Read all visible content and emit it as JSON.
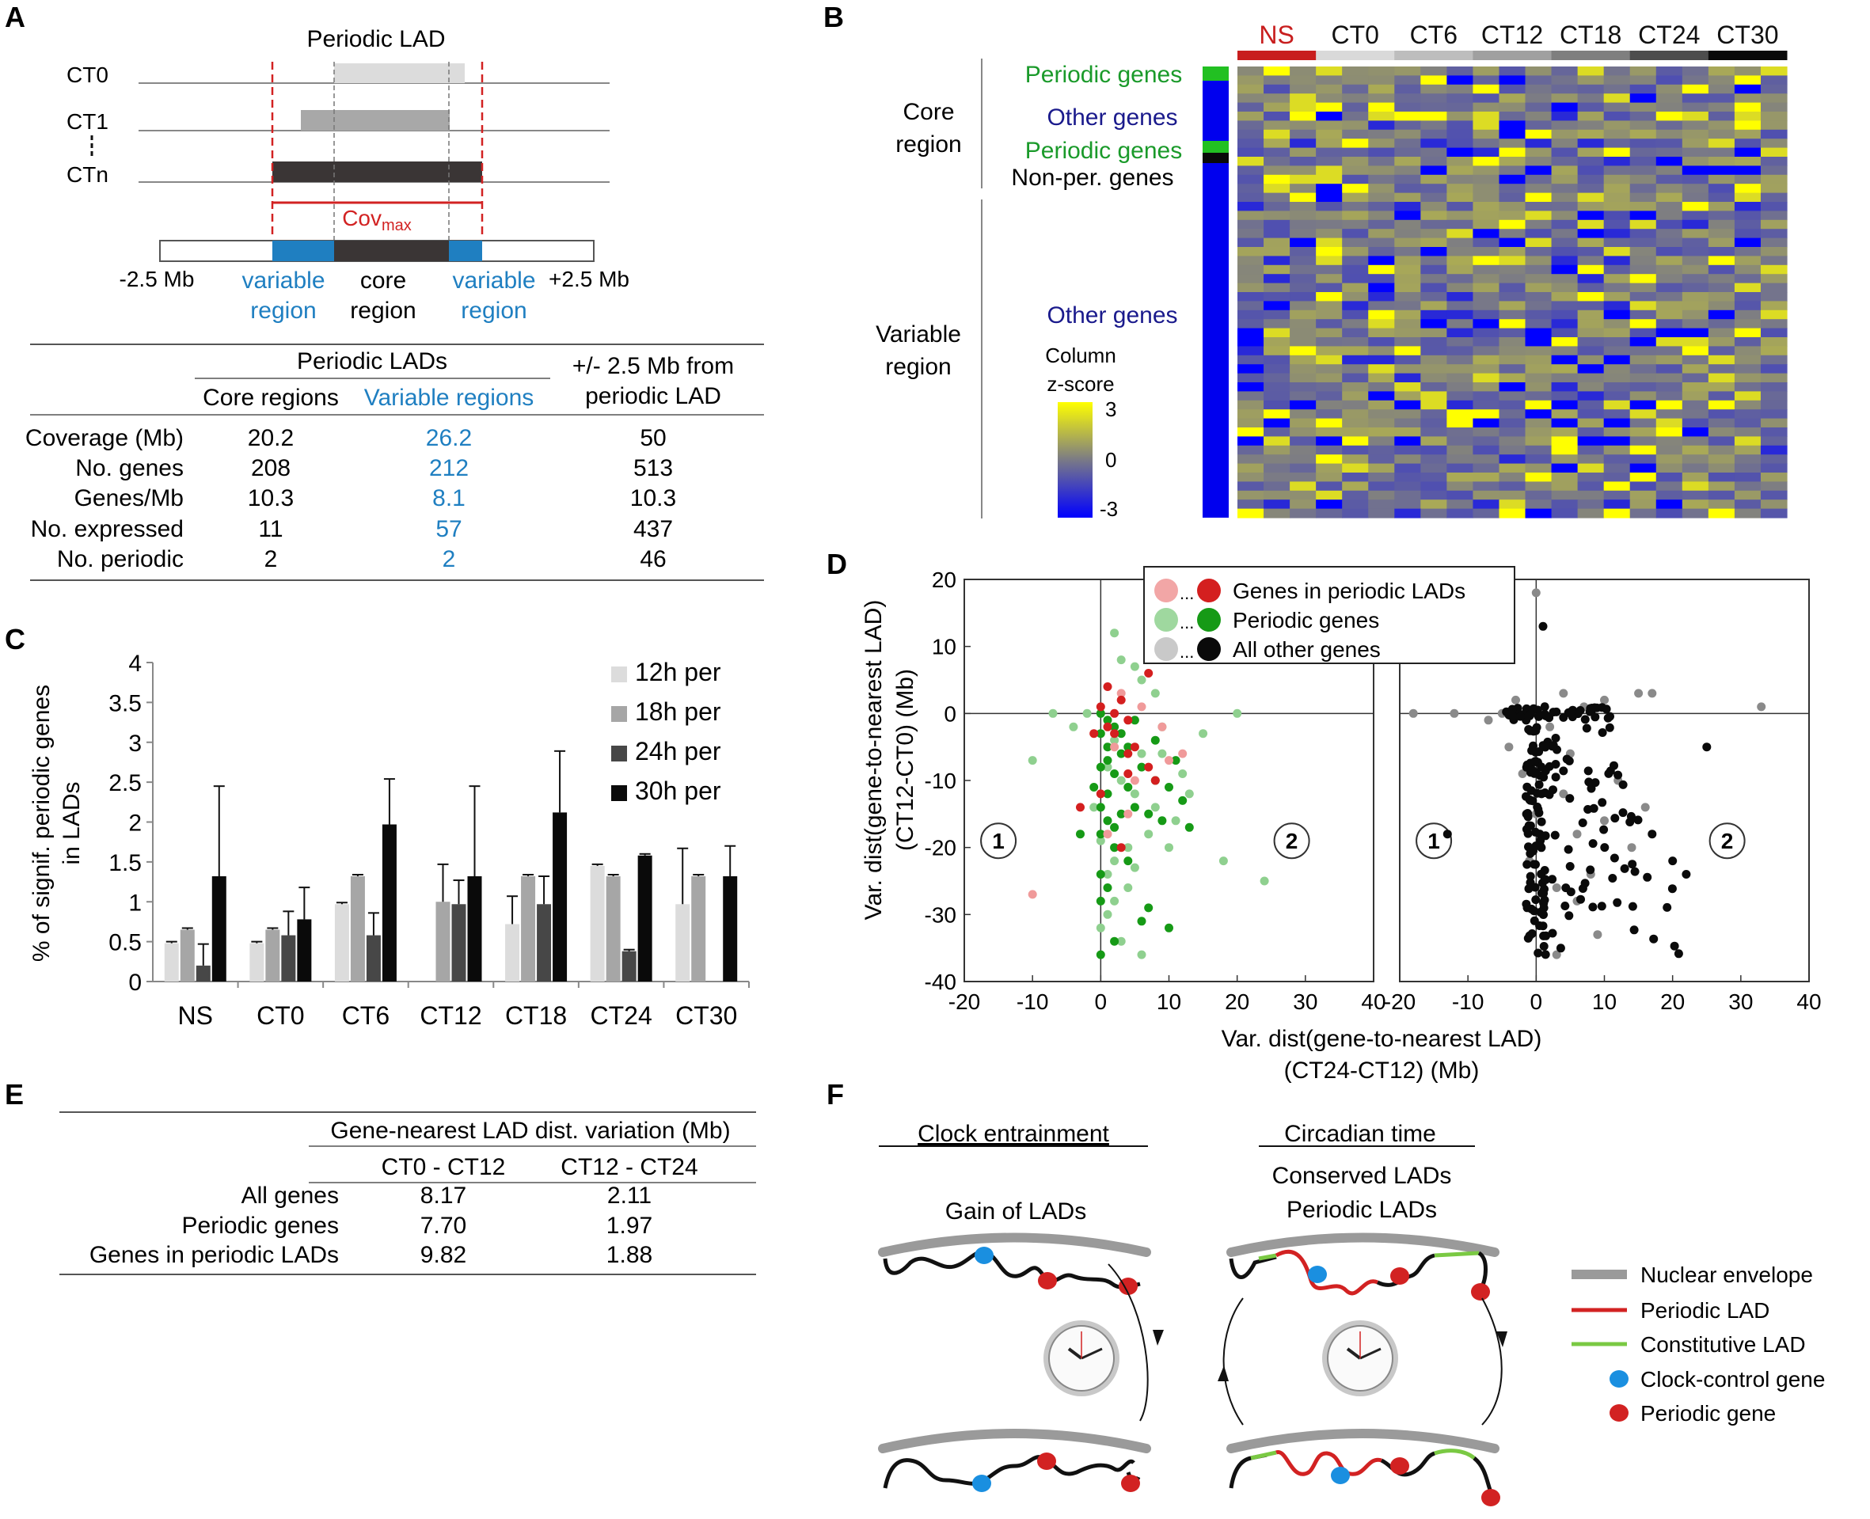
{
  "colors": {
    "blue": "#1f7fc1",
    "green": "#1a9a2a",
    "red": "#d22222",
    "navy": "#1a1a8c",
    "yellow": "#ffff00",
    "heat_blue": "#0000ff",
    "heat_mid": "#7a7a86"
  },
  "panels": {
    "A": "A",
    "B": "B",
    "C": "C",
    "D": "D",
    "E": "E",
    "F": "F"
  },
  "panelA": {
    "title": "Periodic LAD",
    "rows": [
      "CT0",
      "CT1",
      "CTn"
    ],
    "cov": "Cov",
    "cov_sub": "max",
    "axis_left": "-2.5 Mb",
    "axis_right": "+2.5 Mb",
    "region_labels": [
      [
        "variable",
        "region"
      ],
      [
        "core",
        "region"
      ],
      [
        "variable",
        "region"
      ]
    ],
    "table": {
      "group_header": "Periodic LADs",
      "col_core": "Core regions",
      "col_variable": "Variable regions",
      "col_flank": [
        "+/- 2.5 Mb from",
        "periodic LAD"
      ],
      "rows": [
        {
          "label": "Coverage (Mb)",
          "core": "20.2",
          "variable": "26.2",
          "flank": "50"
        },
        {
          "label": "No. genes",
          "core": "208",
          "variable": "212",
          "flank": "513"
        },
        {
          "label": "Genes/Mb",
          "core": "10.3",
          "variable": "8.1",
          "flank": "10.3"
        },
        {
          "label": "No. expressed",
          "core": "11",
          "variable": "57",
          "flank": "437"
        },
        {
          "label": "No. periodic",
          "core": "2",
          "variable": "2",
          "flank": "46"
        }
      ]
    }
  },
  "panelB": {
    "columns": [
      "NS",
      "CT0",
      "CT6",
      "CT12",
      "CT18",
      "CT24",
      "CT30"
    ],
    "column_bar_colors": [
      "#c81e1e",
      "#d9d9d9",
      "#bdbdbd",
      "#a0a0a0",
      "#7f7f7f",
      "#4d4d4d",
      "#0a0a0a"
    ],
    "region_labels": [
      [
        "Core",
        "region"
      ],
      [
        "Variable",
        "region"
      ]
    ],
    "gene_groups": [
      "Periodic genes",
      "Other genes",
      "Periodic genes",
      "Non-per. genes",
      "Other genes"
    ],
    "colorbar_title": [
      "Column",
      "z-score"
    ],
    "colorbar_ticks": [
      "3",
      "0",
      "-3"
    ],
    "heatmap_rows": 50,
    "heatmap_cols": 21
  },
  "chart_data": [
    {
      "id": "C",
      "type": "bar",
      "ylabel": "% of signif. periodic genes in LADs",
      "ylabel_lines": [
        "% of signif. periodic genes",
        "in LADs"
      ],
      "ylim": [
        0,
        4
      ],
      "yticks": [
        "0",
        "0.5",
        "1",
        "1.5",
        "2",
        "2.5",
        "3",
        "3.5",
        "4"
      ],
      "categories": [
        "NS",
        "CT0",
        "CT6",
        "CT12",
        "CT18",
        "CT24",
        "CT30"
      ],
      "series": [
        {
          "name": "12h per",
          "color": "#dcdcdc",
          "values": [
            0.48,
            0.48,
            0.97,
            0,
            0.72,
            1.45,
            0.97
          ],
          "errors": [
            0.02,
            0.02,
            0.02,
            0,
            0.35,
            0.02,
            0.7
          ]
        },
        {
          "name": "18h per",
          "color": "#a6a6a6",
          "values": [
            0.65,
            0.65,
            1.32,
            1.0,
            1.32,
            1.32,
            1.32
          ],
          "errors": [
            0.02,
            0.02,
            0.02,
            0.47,
            0.02,
            0.02,
            0.02
          ]
        },
        {
          "name": "24h per",
          "color": "#474747",
          "values": [
            0.2,
            0.58,
            0.58,
            0.97,
            0.97,
            0.38,
            0
          ],
          "errors": [
            0.27,
            0.3,
            0.28,
            0.3,
            0.35,
            0.02,
            0
          ]
        },
        {
          "name": "30h per",
          "color": "#0a0a0a",
          "values": [
            1.32,
            0.78,
            1.97,
            1.32,
            2.12,
            1.58,
            1.32
          ],
          "errors": [
            1.13,
            0.4,
            0.57,
            1.13,
            0.77,
            0.02,
            0.38
          ]
        }
      ]
    },
    {
      "id": "D",
      "type": "scatter",
      "xlabel": [
        "Var. dist(gene-to-nearest LAD)",
        "(CT24-CT12) (Mb)"
      ],
      "ylabel": [
        "Var. dist(gene-to-nearest LAD)",
        "(CT12-CT0) (Mb)"
      ],
      "xlim": [
        -20,
        40
      ],
      "ylim": [
        -40,
        20
      ],
      "xticks": [
        "-20",
        "-10",
        "0",
        "10",
        "20",
        "30",
        "40"
      ],
      "yticks": [
        "20",
        "10",
        "0",
        "-10",
        "-20",
        "-30",
        "-40"
      ],
      "quadrant_labels": [
        "1",
        "2"
      ],
      "legend": [
        "Genes in periodic LADs",
        "Periodic genes",
        "All other genes"
      ],
      "legend_ellipsis": "...",
      "left_series": [
        {
          "name": "Periodic genes (faint)",
          "color": "#8fd08f",
          "points": [
            [
              2,
              12
            ],
            [
              3,
              8
            ],
            [
              5,
              7
            ],
            [
              6,
              5
            ],
            [
              8,
              3
            ],
            [
              -2,
              0
            ],
            [
              -7,
              0
            ],
            [
              -4,
              -2
            ],
            [
              20,
              0
            ],
            [
              -10,
              -7
            ],
            [
              9,
              -2
            ],
            [
              2,
              -4
            ],
            [
              6,
              -6
            ],
            [
              3,
              -10
            ],
            [
              5,
              -12
            ],
            [
              8,
              -14
            ],
            [
              11,
              -16
            ],
            [
              13,
              -12
            ],
            [
              7,
              -18
            ],
            [
              4,
              -20
            ],
            [
              2,
              -22
            ],
            [
              1,
              -24
            ],
            [
              10,
              -20
            ],
            [
              18,
              -22
            ],
            [
              24,
              -25
            ],
            [
              1,
              -30
            ],
            [
              3,
              -34
            ],
            [
              6,
              -36
            ],
            [
              2,
              -28
            ],
            [
              0,
              -32
            ],
            [
              4,
              -26
            ],
            [
              12,
              -9
            ],
            [
              9,
              -6
            ],
            [
              -1,
              -14
            ],
            [
              0,
              -19
            ],
            [
              5,
              -23
            ],
            [
              1,
              -8
            ],
            [
              15,
              -3
            ]
          ]
        },
        {
          "name": "Periodic genes",
          "color": "#169a16",
          "points": [
            [
              0,
              0
            ],
            [
              1,
              -1
            ],
            [
              2,
              -2
            ],
            [
              0,
              -3
            ],
            [
              1,
              -5
            ],
            [
              3,
              -6
            ],
            [
              0,
              -8
            ],
            [
              2,
              -9
            ],
            [
              -1,
              -11
            ],
            [
              1,
              -12
            ],
            [
              4,
              -11
            ],
            [
              6,
              -8
            ],
            [
              8,
              -10
            ],
            [
              10,
              -11
            ],
            [
              12,
              -13
            ],
            [
              13,
              -17
            ],
            [
              9,
              -16
            ],
            [
              7,
              -15
            ],
            [
              5,
              -14
            ],
            [
              3,
              -15
            ],
            [
              1,
              -16
            ],
            [
              0,
              -18
            ],
            [
              -3,
              -18
            ],
            [
              2,
              -20
            ],
            [
              4,
              -22
            ],
            [
              0,
              -24
            ],
            [
              1,
              -26
            ],
            [
              0,
              -28
            ],
            [
              2,
              -34
            ],
            [
              0,
              -36
            ],
            [
              7,
              -29
            ],
            [
              10,
              -32
            ],
            [
              6,
              -31
            ],
            [
              3,
              -3
            ],
            [
              1,
              -7
            ],
            [
              0,
              -14
            ],
            [
              2,
              -17
            ],
            [
              5,
              -1
            ],
            [
              8,
              -4
            ],
            [
              11,
              -7
            ],
            [
              4,
              -5
            ]
          ]
        },
        {
          "name": "Genes in periodic LADs (faint)",
          "color": "#f09a9a",
          "points": [
            [
              3,
              3
            ],
            [
              6,
              1
            ],
            [
              9,
              -2
            ],
            [
              2,
              -5
            ],
            [
              -10,
              -27
            ],
            [
              10,
              -7
            ],
            [
              5,
              -10
            ],
            [
              4,
              -15
            ],
            [
              1,
              -18
            ],
            [
              12,
              -6
            ]
          ]
        },
        {
          "name": "Genes in periodic LADs",
          "color": "#d41f1f",
          "points": [
            [
              1,
              4
            ],
            [
              3,
              2
            ],
            [
              0,
              1
            ],
            [
              2,
              0
            ],
            [
              4,
              -1
            ],
            [
              2,
              -3
            ],
            [
              1,
              -2
            ],
            [
              -1,
              -3
            ],
            [
              5,
              -5
            ],
            [
              4,
              -6
            ],
            [
              7,
              -8
            ],
            [
              8,
              -10
            ],
            [
              -3,
              -14
            ],
            [
              0,
              -12
            ],
            [
              3,
              -20
            ],
            [
              7,
              6
            ],
            [
              4,
              -9
            ]
          ]
        }
      ],
      "right_series": [
        {
          "name": "All other genes (faint)",
          "color": "#8a8a8a",
          "points": [
            [
              -18,
              0
            ],
            [
              -12,
              0
            ],
            [
              -7,
              -1
            ],
            [
              -5,
              0
            ],
            [
              -3,
              2
            ],
            [
              4,
              3
            ],
            [
              7,
              1
            ],
            [
              10,
              2
            ],
            [
              15,
              3
            ],
            [
              17,
              3
            ],
            [
              33,
              1
            ],
            [
              2,
              -2
            ],
            [
              5,
              -6
            ],
            [
              -2,
              -9
            ],
            [
              0,
              -15
            ],
            [
              -1,
              -22
            ],
            [
              3,
              -26
            ],
            [
              1,
              -30
            ],
            [
              4,
              -12
            ],
            [
              6,
              -18
            ],
            [
              8,
              -24
            ],
            [
              10,
              -16
            ],
            [
              12,
              -10
            ],
            [
              14,
              -20
            ],
            [
              9,
              -33
            ],
            [
              -4,
              -5
            ],
            [
              3,
              -36
            ],
            [
              0,
              18
            ],
            [
              16,
              -14
            ],
            [
              6,
              -28
            ]
          ]
        },
        {
          "name": "All other genes",
          "color": "#0a0a0a",
          "points": "generated"
        }
      ]
    }
  ],
  "panelE": {
    "group_header": "Gene-nearest LAD dist. variation (Mb)",
    "col1": "CT0 - CT12",
    "col2": "CT12 - CT24",
    "rows": [
      {
        "label": "All genes",
        "v1": "8.17",
        "v2": "2.11"
      },
      {
        "label": "Periodic genes",
        "v1": "7.70",
        "v2": "1.97"
      },
      {
        "label": "Genes in periodic LADs",
        "v1": "9.82",
        "v2": "1.88"
      }
    ]
  },
  "panelF": {
    "heading_left": "Clock entrainment",
    "heading_right": "Circadian time",
    "sub_left": "Gain of LADs",
    "sub_right": [
      "Conserved LADs",
      "Periodic LADs"
    ],
    "legend": [
      "Nuclear envelope",
      "Periodic LAD",
      "Constitutive LAD",
      "Clock-control gene",
      "Periodic gene"
    ]
  }
}
